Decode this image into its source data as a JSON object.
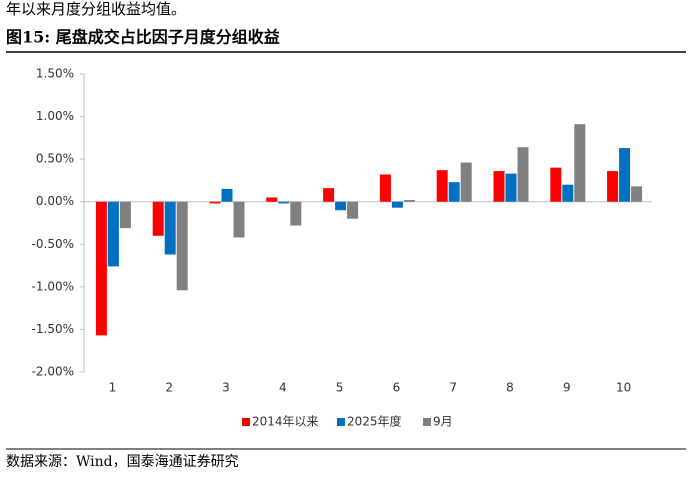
{
  "document": {
    "intro_tail": "年以来月度分组收益均值。",
    "figure_title": "图15:  尾盘成交占比因子月度分组收益",
    "source": "数据来源：Wind，国泰海通证券研究"
  },
  "chart_data": {
    "type": "bar",
    "categories": [
      "1",
      "2",
      "3",
      "4",
      "5",
      "6",
      "7",
      "8",
      "9",
      "10"
    ],
    "series": [
      {
        "name": "2014年以来",
        "color": "#ff0000",
        "values": [
          -1.57,
          -0.4,
          -0.02,
          0.05,
          0.16,
          0.32,
          0.37,
          0.36,
          0.4,
          0.36
        ]
      },
      {
        "name": "2025年度",
        "color": "#0070c0",
        "values": [
          -0.76,
          -0.62,
          0.15,
          -0.02,
          -0.1,
          -0.07,
          0.23,
          0.33,
          0.2,
          0.63
        ]
      },
      {
        "name": "9月",
        "color": "#808080",
        "values": [
          -0.31,
          -1.04,
          -0.42,
          -0.28,
          -0.2,
          0.02,
          0.46,
          0.64,
          0.91,
          0.18
        ]
      }
    ],
    "ylim": [
      -2,
      1.5
    ],
    "yticks": [
      {
        "value": -2,
        "label": "-2.00%"
      },
      {
        "value": -1.5,
        "label": "-1.50%"
      },
      {
        "value": -1,
        "label": "-1.00%"
      },
      {
        "value": -0.5,
        "label": "-0.50%"
      },
      {
        "value": 0,
        "label": "0.00%"
      },
      {
        "value": 0.5,
        "label": "0.50%"
      },
      {
        "value": 1,
        "label": "1.00%"
      },
      {
        "value": 1.5,
        "label": "1.50%"
      }
    ],
    "legend": "bottom"
  }
}
